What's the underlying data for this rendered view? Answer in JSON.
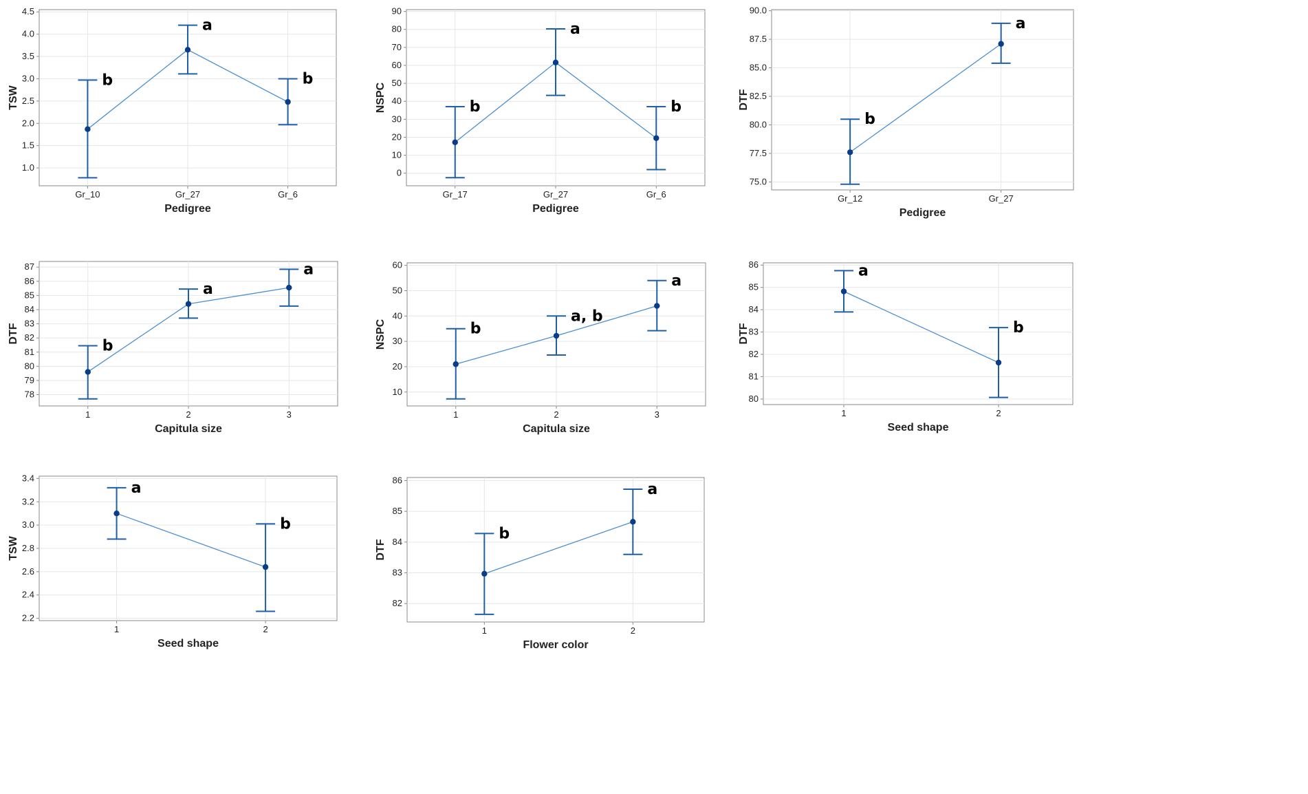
{
  "figure": {
    "colors": {
      "series": "#1f5fa8",
      "line": "#4a90d0",
      "point": "#0b3c86",
      "grid": "#e6e6e6",
      "frame": "#888888"
    }
  },
  "chart_data": [
    {
      "id": "tsw-pedigree",
      "type": "interval",
      "xlabel": "Pedigree",
      "ylabel": "TSW",
      "categories": [
        "Gr_10",
        "Gr_27",
        "Gr_6"
      ],
      "means": [
        1.87,
        3.65,
        2.48
      ],
      "lower": [
        0.78,
        3.11,
        1.97
      ],
      "upper": [
        2.97,
        4.2,
        3.0
      ],
      "letters": [
        "b",
        "a",
        "b"
      ],
      "ylim": [
        0.6,
        4.55
      ],
      "yticks": [
        "1.0",
        "1.5",
        "2.0",
        "2.5",
        "3.0",
        "3.5",
        "4.0",
        "4.5"
      ]
    },
    {
      "id": "nspc-pedigree",
      "type": "interval",
      "xlabel": "Pedigree",
      "ylabel": "NSPC",
      "categories": [
        "Gr_17",
        "Gr_27",
        "Gr_6"
      ],
      "means": [
        17.2,
        61.6,
        19.5
      ],
      "lower": [
        -2.5,
        43.3,
        2.0
      ],
      "upper": [
        37.0,
        80.3,
        37.0
      ],
      "letters": [
        "b",
        "a",
        "b"
      ],
      "ylim": [
        -7,
        91
      ],
      "yticks": [
        "0",
        "10",
        "20",
        "30",
        "40",
        "50",
        "60",
        "70",
        "80",
        "90"
      ]
    },
    {
      "id": "dtf-pedigree",
      "type": "interval",
      "xlabel": "Pedigree",
      "ylabel": "DTF",
      "categories": [
        "Gr_12",
        "Gr_27"
      ],
      "means": [
        77.6,
        87.1
      ],
      "lower": [
        74.8,
        85.4
      ],
      "upper": [
        80.5,
        88.9
      ],
      "letters": [
        "b",
        "a"
      ],
      "ylim": [
        74.3,
        90.1
      ],
      "yticks": [
        "75.0",
        "77.5",
        "80.0",
        "82.5",
        "85.0",
        "87.5",
        "90.0"
      ]
    },
    {
      "id": "dtf-capitula",
      "type": "interval",
      "xlabel": "Capitula size",
      "ylabel": "DTF",
      "categories": [
        "1",
        "2",
        "3"
      ],
      "means": [
        79.6,
        84.4,
        85.55
      ],
      "lower": [
        77.7,
        83.4,
        84.25
      ],
      "upper": [
        81.45,
        85.45,
        86.85
      ],
      "letters": [
        "b",
        "a",
        "a"
      ],
      "ylim": [
        77.2,
        87.4
      ],
      "yticks": [
        "78",
        "79",
        "80",
        "81",
        "82",
        "83",
        "84",
        "85",
        "86",
        "87"
      ]
    },
    {
      "id": "nspc-capitula",
      "type": "interval",
      "xlabel": "Capitula size",
      "ylabel": "NSPC",
      "categories": [
        "1",
        "2",
        "3"
      ],
      "means": [
        21.0,
        32.2,
        44.0
      ],
      "lower": [
        7.3,
        24.6,
        34.2
      ],
      "upper": [
        35.0,
        40.0,
        54.0
      ],
      "letters": [
        "b",
        "a, b",
        "a"
      ],
      "ylim": [
        4.5,
        61
      ],
      "yticks": [
        "10",
        "20",
        "30",
        "40",
        "50",
        "60"
      ]
    },
    {
      "id": "dtf-seedshape",
      "type": "interval",
      "xlabel": "Seed shape",
      "ylabel": "DTF",
      "categories": [
        "1",
        "2"
      ],
      "means": [
        84.82,
        81.63
      ],
      "lower": [
        83.9,
        80.07
      ],
      "upper": [
        85.75,
        83.2
      ],
      "letters": [
        "a",
        "b"
      ],
      "ylim": [
        79.75,
        86.1
      ],
      "yticks": [
        "80",
        "81",
        "82",
        "83",
        "84",
        "85",
        "86"
      ]
    },
    {
      "id": "tsw-seedshape",
      "type": "interval",
      "xlabel": "Seed shape",
      "ylabel": "TSW",
      "categories": [
        "1",
        "2"
      ],
      "means": [
        3.1,
        2.64
      ],
      "lower": [
        2.88,
        2.26
      ],
      "upper": [
        3.32,
        3.01
      ],
      "letters": [
        "a",
        "b"
      ],
      "ylim": [
        2.18,
        3.42
      ],
      "yticks": [
        "2.2",
        "2.4",
        "2.6",
        "2.8",
        "3.0",
        "3.2",
        "3.4"
      ]
    },
    {
      "id": "dtf-flowercolor",
      "type": "interval",
      "xlabel": "Flower color",
      "ylabel": "DTF",
      "categories": [
        "1",
        "2"
      ],
      "means": [
        82.97,
        84.66
      ],
      "lower": [
        81.65,
        83.6
      ],
      "upper": [
        84.28,
        85.72
      ],
      "letters": [
        "b",
        "a"
      ],
      "ylim": [
        81.4,
        86.1
      ],
      "yticks": [
        "82",
        "83",
        "84",
        "85",
        "86"
      ]
    }
  ]
}
